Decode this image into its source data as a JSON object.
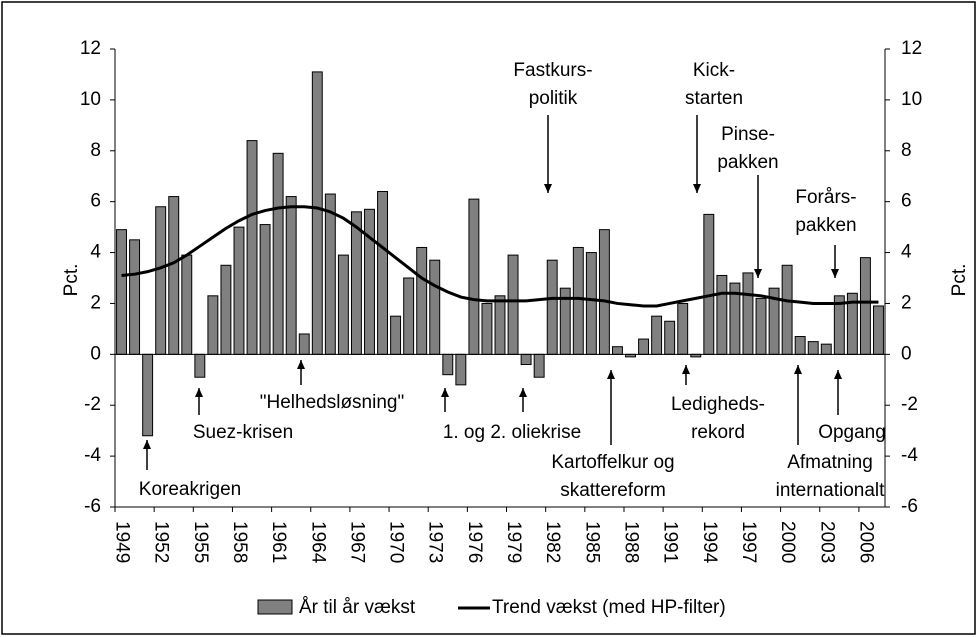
{
  "chart_data": {
    "type": "bar",
    "categories": [
      "1949",
      null,
      null,
      "1952",
      null,
      null,
      "1955",
      null,
      null,
      "1958",
      null,
      null,
      "1961",
      null,
      null,
      "1964",
      null,
      null,
      "1967",
      null,
      null,
      "1970",
      null,
      null,
      "1973",
      null,
      null,
      "1976",
      null,
      null,
      "1979",
      null,
      null,
      "1982",
      null,
      null,
      "1985",
      null,
      null,
      "1988",
      null,
      null,
      "1991",
      null,
      null,
      "1994",
      null,
      null,
      "1997",
      null,
      null,
      "2000",
      null,
      null,
      "2003",
      null,
      null,
      "2006",
      null
    ],
    "series": [
      {
        "name": "År til år vækst",
        "type": "bar",
        "color": "#808080",
        "values": [
          4.9,
          4.5,
          -3.2,
          5.8,
          6.2,
          3.9,
          -0.9,
          2.3,
          3.5,
          5.0,
          8.4,
          5.1,
          7.9,
          6.2,
          0.8,
          11.1,
          6.3,
          3.9,
          5.6,
          5.7,
          6.4,
          1.5,
          3.0,
          4.2,
          3.7,
          -0.8,
          -1.2,
          6.1,
          2.0,
          2.3,
          3.9,
          -0.4,
          -0.9,
          3.7,
          2.6,
          4.2,
          4.0,
          4.9,
          0.3,
          -0.1,
          0.6,
          1.5,
          1.3,
          2.0,
          -0.1,
          5.5,
          3.1,
          2.8,
          3.2,
          2.2,
          2.6,
          3.5,
          0.7,
          0.5,
          0.4,
          2.3,
          2.4,
          3.8,
          1.9
        ]
      },
      {
        "name": "Trend vækst (med HP-filter)",
        "type": "line",
        "color": "#000000",
        "values": [
          3.1,
          3.15,
          3.25,
          3.4,
          3.6,
          3.9,
          4.25,
          4.6,
          4.95,
          5.25,
          5.5,
          5.65,
          5.75,
          5.8,
          5.8,
          5.75,
          5.6,
          5.35,
          5.0,
          4.6,
          4.2,
          3.8,
          3.4,
          3.0,
          2.7,
          2.45,
          2.25,
          2.15,
          2.1,
          2.1,
          2.1,
          2.1,
          2.15,
          2.2,
          2.2,
          2.2,
          2.15,
          2.1,
          2.0,
          1.95,
          1.9,
          1.9,
          2.0,
          2.1,
          2.2,
          2.3,
          2.4,
          2.4,
          2.35,
          2.3,
          2.2,
          2.1,
          2.05,
          2.0,
          2.0,
          2.0,
          2.05,
          2.05,
          2.05
        ]
      }
    ],
    "ylabel": "Pct.",
    "y2label": "Pct.",
    "ylim": [
      -6,
      12
    ],
    "yticks": [
      -6,
      -4,
      -2,
      0,
      2,
      4,
      6,
      8,
      10,
      12
    ],
    "y2lim": [
      -6,
      12
    ],
    "y2ticks": [
      -6,
      -4,
      -2,
      0,
      2,
      4,
      6,
      8,
      10,
      12
    ],
    "legend": "bottom",
    "annotations": [
      {
        "lines": [
          "Koreakrigen"
        ]
      },
      {
        "lines": [
          "Suez-krisen"
        ]
      },
      {
        "lines": [
          "\"Helhedsløsning\""
        ]
      },
      {
        "lines": [
          "1. og 2. oliekrise"
        ]
      },
      {
        "lines": [
          "Kartoffelkur og",
          "skattereform"
        ]
      },
      {
        "lines": [
          "Ledigheds-",
          "rekord"
        ]
      },
      {
        "lines": [
          "Afmatning",
          "internationalt"
        ]
      },
      {
        "lines": [
          "Opgang"
        ]
      },
      {
        "lines": [
          "Fastkurs-",
          "politik"
        ]
      },
      {
        "lines": [
          "Kick-",
          "starten"
        ]
      },
      {
        "lines": [
          "Pinse-",
          "pakken"
        ]
      },
      {
        "lines": [
          "Forårs-",
          "pakken"
        ]
      }
    ]
  }
}
